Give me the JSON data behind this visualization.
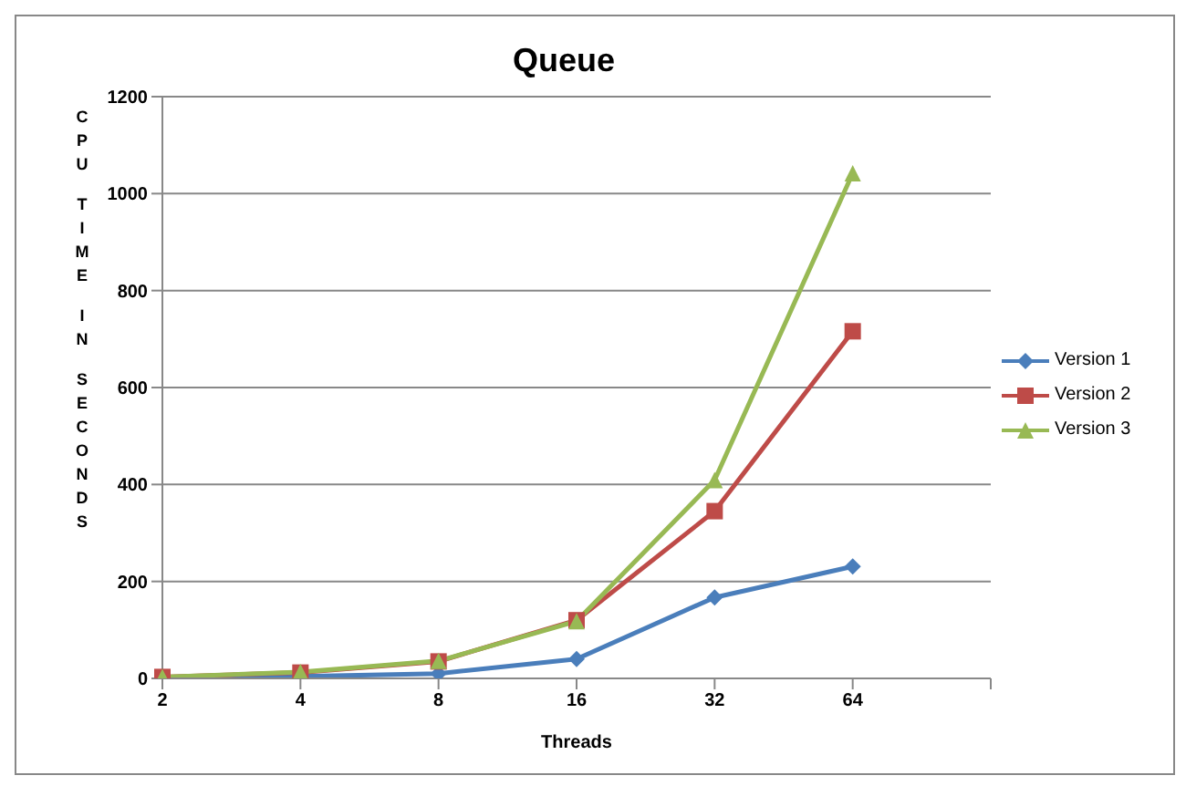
{
  "chart_data": {
    "type": "line",
    "title": "Queue",
    "xlabel": "Threads",
    "ylabel": "CPU TIME IN SECONDS",
    "categories": [
      "2",
      "4",
      "8",
      "16",
      "32",
      "64",
      null
    ],
    "series": [
      {
        "name": "Version 1",
        "color": "#4a7ebb",
        "marker": "diamond",
        "values": [
          2,
          4,
          10,
          40,
          167,
          231,
          null
        ]
      },
      {
        "name": "Version 2",
        "color": "#be4b48",
        "marker": "square",
        "values": [
          3,
          12,
          35,
          120,
          345,
          716,
          null
        ]
      },
      {
        "name": "Version 3",
        "color": "#98b954",
        "marker": "triangle",
        "values": [
          3,
          13,
          36,
          118,
          409,
          1042,
          null
        ]
      }
    ],
    "ylim": [
      0,
      1200
    ],
    "yticks": [
      0,
      200,
      400,
      600,
      800,
      1000,
      1200
    ],
    "grid": "y",
    "legend": "right"
  }
}
